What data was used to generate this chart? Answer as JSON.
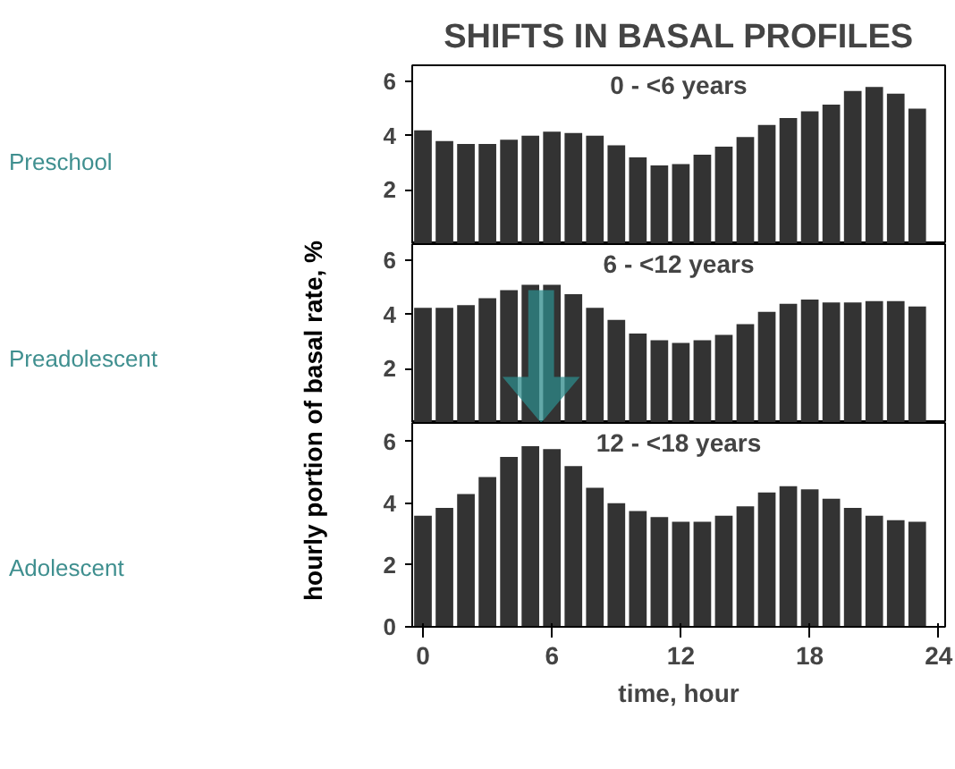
{
  "chart_data": [
    {
      "type": "bar",
      "title": "SHIFTS IN BASAL PROFILES",
      "subtitle": "0 - <6 years",
      "annotations": [
        "Preschool"
      ],
      "x": [
        0,
        1,
        2,
        3,
        4,
        5,
        6,
        7,
        8,
        9,
        10,
        11,
        12,
        13,
        14,
        15,
        16,
        17,
        18,
        19,
        20,
        21,
        22,
        23
      ],
      "values": [
        4.2,
        3.8,
        3.7,
        3.7,
        3.85,
        4.0,
        4.15,
        4.1,
        4.0,
        3.65,
        3.2,
        2.9,
        2.95,
        3.3,
        3.6,
        3.95,
        4.4,
        4.65,
        4.9,
        5.15,
        5.65,
        5.8,
        5.55,
        5.0
      ],
      "color": "#333333",
      "xlim": [
        -0.5,
        24.3
      ],
      "ylim": [
        0,
        6.6
      ],
      "yticks": [
        2,
        4,
        6
      ],
      "tick_labels": "y",
      "grid": false
    },
    {
      "type": "bar",
      "subtitle": "6 - <12 years",
      "annotations": [
        "Preadolescent"
      ],
      "ylabel": "hourly portion of basal rate, %",
      "x": [
        0,
        1,
        2,
        3,
        4,
        5,
        6,
        7,
        8,
        9,
        10,
        11,
        12,
        13,
        14,
        15,
        16,
        17,
        18,
        19,
        20,
        21,
        22,
        23
      ],
      "values": [
        4.25,
        4.25,
        4.35,
        4.6,
        4.9,
        5.1,
        5.1,
        4.75,
        4.25,
        3.8,
        3.3,
        3.05,
        2.95,
        3.05,
        3.25,
        3.65,
        4.1,
        4.4,
        4.55,
        4.45,
        4.45,
        4.5,
        4.5,
        4.3
      ],
      "color": "#333333",
      "xlim": [
        -0.5,
        24.3
      ],
      "ylim": [
        0,
        6.6
      ],
      "yticks": [
        2,
        4,
        6
      ],
      "tick_labels": "y",
      "grid": false
    },
    {
      "type": "bar",
      "subtitle": "12 - <18 years",
      "annotations": [
        "Adolescent"
      ],
      "xlabel": "time, hour",
      "x": [
        0,
        1,
        2,
        3,
        4,
        5,
        6,
        7,
        8,
        9,
        10,
        11,
        12,
        13,
        14,
        15,
        16,
        17,
        18,
        19,
        20,
        21,
        22,
        23
      ],
      "values": [
        3.6,
        3.85,
        4.3,
        4.85,
        5.5,
        5.85,
        5.75,
        5.2,
        4.5,
        4.0,
        3.75,
        3.55,
        3.4,
        3.4,
        3.6,
        3.9,
        4.35,
        4.55,
        4.45,
        4.15,
        3.85,
        3.6,
        3.45,
        3.4
      ],
      "color": "#333333",
      "xlim": [
        -0.5,
        24.3
      ],
      "ylim": [
        0,
        6.6
      ],
      "xticks": [
        0,
        6,
        12,
        18,
        24
      ],
      "yticks": [
        0,
        2,
        4,
        6
      ],
      "grid": false
    }
  ]
}
